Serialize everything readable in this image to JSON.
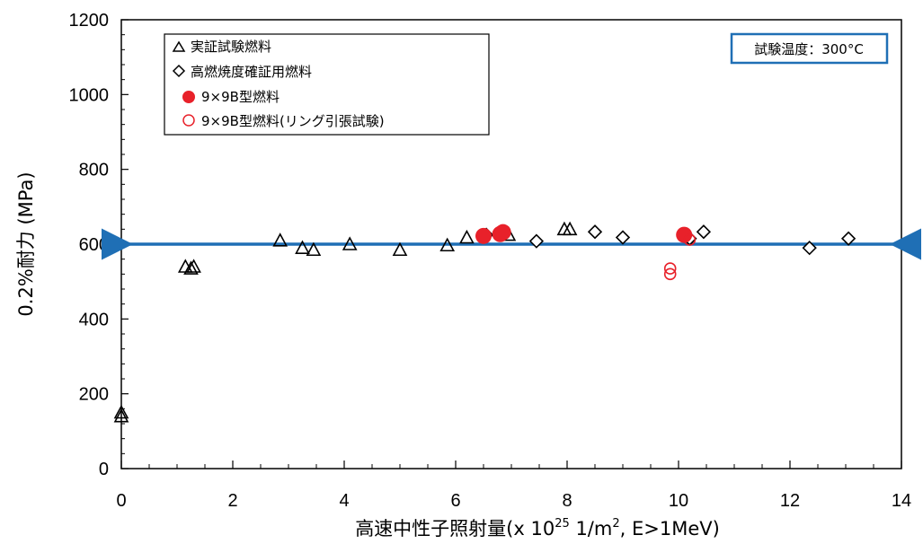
{
  "chart_data": {
    "type": "scatter",
    "xlabel_main": "高速中性子照射量(x 10",
    "xlabel_exp": "25",
    "xlabel_mid": " 1/m",
    "xlabel_exp2": "2",
    "xlabel_tail": ", E>1MeV)",
    "ylabel": "0.2%耐力 (MPa)",
    "condition": "試験温度：300°C",
    "xlim": [
      0,
      14
    ],
    "ylim": [
      0,
      1200
    ],
    "x_ticks": [
      "0",
      "2",
      "4",
      "6",
      "8",
      "10",
      "12",
      "14"
    ],
    "y_ticks": [
      "0",
      "200",
      "400",
      "600",
      "800",
      "1000",
      "1200"
    ],
    "reference_line": {
      "y": 600,
      "color": "#1f6fb5"
    },
    "colors": {
      "filled_red": "#e8212a",
      "open_red": "#e8212a",
      "black": "#000000",
      "box_border": "#1f6fb5"
    },
    "series": [
      {
        "name": "実証試験燃料",
        "marker": "triangle",
        "points": [
          [
            0.0,
            140
          ],
          [
            0.0,
            150
          ],
          [
            1.15,
            540
          ],
          [
            1.25,
            535
          ],
          [
            1.3,
            540
          ],
          [
            2.85,
            610
          ],
          [
            3.25,
            590
          ],
          [
            3.45,
            585
          ],
          [
            4.1,
            600
          ],
          [
            5.0,
            585
          ],
          [
            5.85,
            597
          ],
          [
            6.2,
            618
          ],
          [
            6.95,
            625
          ],
          [
            7.95,
            640
          ],
          [
            8.05,
            640
          ]
        ]
      },
      {
        "name": "高燃焼度確証用燃料",
        "marker": "diamond",
        "points": [
          [
            6.55,
            625
          ],
          [
            7.45,
            608
          ],
          [
            8.5,
            633
          ],
          [
            9.0,
            618
          ],
          [
            10.2,
            615
          ],
          [
            10.45,
            633
          ],
          [
            12.35,
            590
          ],
          [
            13.05,
            615
          ]
        ]
      },
      {
        "name": "9×9B型燃料",
        "marker": "filled-circle",
        "points": [
          [
            6.5,
            622
          ],
          [
            6.8,
            627
          ],
          [
            6.85,
            632
          ],
          [
            10.1,
            625
          ]
        ]
      },
      {
        "name": "9×9B型燃料(リング引張試験)",
        "marker": "open-circle",
        "points": [
          [
            9.85,
            535
          ],
          [
            9.85,
            520
          ],
          [
            10.2,
            612
          ]
        ]
      }
    ]
  }
}
